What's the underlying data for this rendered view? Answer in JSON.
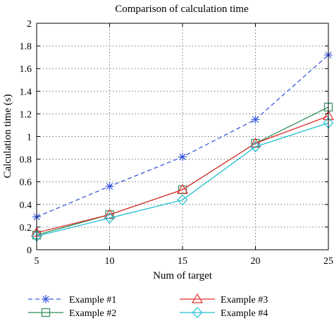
{
  "chart_data": {
    "type": "line",
    "title": "Comparison of calculation time",
    "xlabel": "Num of target",
    "ylabel": "Calculation time (s)",
    "x": [
      5,
      10,
      15,
      20,
      25
    ],
    "xlim": [
      5,
      25
    ],
    "ylim": [
      0,
      2
    ],
    "xticks": [
      "5",
      "10",
      "15",
      "20",
      "25"
    ],
    "yticks": [
      "0",
      "0.2",
      "0.4",
      "0.6",
      "0.8",
      "1",
      "1.2",
      "1.4",
      "1.6",
      "1.8",
      "2"
    ],
    "grid": true,
    "legend_position": "bottom",
    "series": [
      {
        "name": "Example #1",
        "values": [
          0.29,
          0.56,
          0.82,
          1.15,
          1.72
        ],
        "color": "#3b5bdb",
        "dash": true,
        "marker": "asterisk"
      },
      {
        "name": "Example #2",
        "values": [
          0.13,
          0.31,
          0.53,
          0.94,
          1.26
        ],
        "color": "#2e8b57",
        "dash": false,
        "marker": "square"
      },
      {
        "name": "Example #3",
        "values": [
          0.15,
          0.31,
          0.53,
          0.94,
          1.18
        ],
        "color": "#e03131",
        "dash": false,
        "marker": "triangle"
      },
      {
        "name": "Example #4",
        "values": [
          0.12,
          0.28,
          0.44,
          0.91,
          1.12
        ],
        "color": "#1fc0d0",
        "dash": false,
        "marker": "diamond"
      }
    ]
  }
}
